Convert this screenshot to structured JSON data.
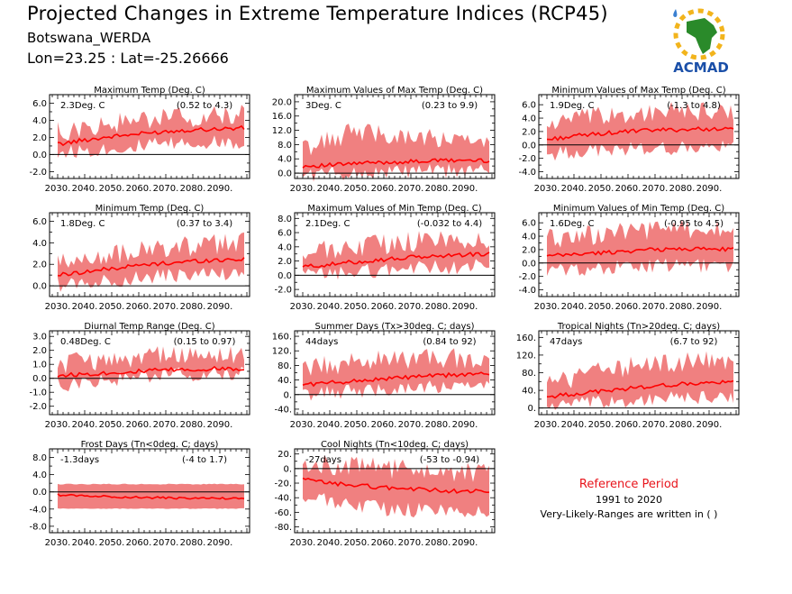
{
  "header": {
    "title": "Projected Changes in Extreme Temperature Indices (RCP45)",
    "station": "Botswana_WERDA",
    "coords": "Lon=23.25 : Lat=-25.26666"
  },
  "logo": {
    "text": "ACMAD",
    "colors": {
      "africa": "#2a8a2a",
      "sun": "#f2b41c",
      "text": "#1a4fa8",
      "drop": "#3a7fd0"
    }
  },
  "reference": {
    "title": "Reference Period",
    "years": "1991 to 2020",
    "note": "Very-Likely-Ranges are written in ( )"
  },
  "colors": {
    "band": "#f08080",
    "line": "#ff0000",
    "zero": "#000000"
  },
  "chart_data": [
    {
      "type": "area",
      "title": "Maximum Temp (Deg. C)",
      "value": "2.3Deg. C",
      "range": "(0.52 to 4.3)",
      "xticks": [
        "2030.",
        "2040.",
        "2050.",
        "2060.",
        "2070.",
        "2080.",
        "2090."
      ],
      "yticks": [
        "-2.0",
        "0.0",
        "2.0",
        "4.0",
        "6.0"
      ],
      "ylim": [
        -2.8,
        7.0
      ],
      "x": [
        2030,
        2040,
        2050,
        2060,
        2070,
        2080,
        2090,
        2099
      ],
      "median": [
        1.2,
        1.7,
        2.1,
        2.4,
        2.7,
        2.9,
        3.0,
        3.1
      ],
      "lower": [
        0.2,
        0.5,
        0.7,
        1.0,
        1.2,
        1.3,
        1.4,
        1.5
      ],
      "upper": [
        2.6,
        3.0,
        3.6,
        4.0,
        4.2,
        4.4,
        4.5,
        4.6
      ]
    },
    {
      "type": "area",
      "title": "Maximum Values of Max Temp (Deg. C)",
      "value": "3Deg. C",
      "range": "(0.23 to 9.9)",
      "xticks": [
        "2030.",
        "2040.",
        "2050.",
        "2060.",
        "2070.",
        "2080.",
        "2090."
      ],
      "yticks": [
        "0.0",
        "4.0",
        "8.0",
        "12.0",
        "16.0",
        "20.0"
      ],
      "ylim": [
        -1.5,
        22.0
      ],
      "x": [
        2030,
        2040,
        2050,
        2060,
        2070,
        2080,
        2090,
        2099
      ],
      "median": [
        2.0,
        2.2,
        2.7,
        3.0,
        3.2,
        3.5,
        3.6,
        3.5
      ],
      "lower": [
        -0.5,
        0.0,
        0.0,
        0.3,
        0.5,
        0.5,
        0.7,
        0.8
      ],
      "upper": [
        7.0,
        9.0,
        12.0,
        11.0,
        10.0,
        9.5,
        9.0,
        8.0
      ]
    },
    {
      "type": "area",
      "title": "Minimum Values of Max Temp (Deg. C)",
      "value": "1.9Deg. C",
      "range": "(-1.3 to 4.8)",
      "xticks": [
        "2030.",
        "2040.",
        "2050.",
        "2060.",
        "2070.",
        "2080.",
        "2090."
      ],
      "yticks": [
        "-4.0",
        "-2.0",
        "0.0",
        "2.0",
        "4.0",
        "6.0"
      ],
      "ylim": [
        -5.0,
        7.5
      ],
      "x": [
        2030,
        2040,
        2050,
        2060,
        2070,
        2080,
        2090,
        2099
      ],
      "median": [
        0.8,
        1.3,
        1.7,
        2.0,
        2.2,
        2.3,
        2.4,
        2.3
      ],
      "lower": [
        -1.5,
        -1.0,
        -0.8,
        -0.6,
        -0.5,
        -0.5,
        -0.4,
        -0.4
      ],
      "upper": [
        3.0,
        3.8,
        4.2,
        4.6,
        4.8,
        4.9,
        5.0,
        5.0
      ]
    },
    {
      "type": "area",
      "title": "Minimum Temp (Deg. C)",
      "value": "1.8Deg. C",
      "range": "(0.37 to 3.4)",
      "xticks": [
        "2030.",
        "2040.",
        "2050.",
        "2060.",
        "2070.",
        "2080.",
        "2090."
      ],
      "yticks": [
        "0.0",
        "2.0",
        "4.0",
        "6.0"
      ],
      "ylim": [
        -1.0,
        6.8
      ],
      "x": [
        2030,
        2040,
        2050,
        2060,
        2070,
        2080,
        2090,
        2099
      ],
      "median": [
        1.0,
        1.3,
        1.6,
        1.9,
        2.1,
        2.3,
        2.4,
        2.5
      ],
      "lower": [
        0.1,
        0.3,
        0.5,
        0.7,
        0.9,
        1.0,
        1.1,
        1.2
      ],
      "upper": [
        2.0,
        2.5,
        2.9,
        3.2,
        3.5,
        3.7,
        3.9,
        4.0
      ]
    },
    {
      "type": "area",
      "title": "Maximum Values of Min Temp (Deg. C)",
      "value": "2.1Deg. C",
      "range": "(-0.032 to 4.4)",
      "xticks": [
        "2030.",
        "2040.",
        "2050.",
        "2060.",
        "2070.",
        "2080.",
        "2090."
      ],
      "yticks": [
        "-2.0",
        "0.0",
        "2.0",
        "4.0",
        "6.0",
        "8.0"
      ],
      "ylim": [
        -3.0,
        8.8
      ],
      "x": [
        2030,
        2040,
        2050,
        2060,
        2070,
        2080,
        2090,
        2099
      ],
      "median": [
        1.2,
        1.5,
        1.9,
        2.2,
        2.5,
        2.7,
        2.9,
        3.0
      ],
      "lower": [
        0.0,
        0.2,
        0.5,
        0.7,
        1.0,
        1.1,
        1.2,
        1.3
      ],
      "upper": [
        3.0,
        3.5,
        4.0,
        4.4,
        4.7,
        4.9,
        5.0,
        5.0
      ]
    },
    {
      "type": "area",
      "title": "Minimum Values of Min Temp (Deg. C)",
      "value": "1.6Deg. C",
      "range": "(-0.95 to 4.5)",
      "xticks": [
        "2030.",
        "2040.",
        "2050.",
        "2060.",
        "2070.",
        "2080.",
        "2090."
      ],
      "yticks": [
        "-4.0",
        "-2.0",
        "0.0",
        "2.0",
        "4.0",
        "6.0"
      ],
      "ylim": [
        -5.0,
        7.5
      ],
      "x": [
        2030,
        2040,
        2050,
        2060,
        2070,
        2080,
        2090,
        2099
      ],
      "median": [
        1.0,
        1.3,
        1.5,
        1.8,
        2.0,
        2.1,
        2.1,
        2.0
      ],
      "lower": [
        -1.2,
        -0.9,
        -0.8,
        -0.6,
        -0.4,
        -0.4,
        -0.4,
        -0.5
      ],
      "upper": [
        3.5,
        4.0,
        4.3,
        4.6,
        4.8,
        4.9,
        5.0,
        5.0
      ]
    },
    {
      "type": "area",
      "title": "Diurnal Temp Range (Deg. C)",
      "value": "0.48Deg. C",
      "range": "(0.15 to 0.97)",
      "xticks": [
        "2030.",
        "2040.",
        "2050.",
        "2060.",
        "2070.",
        "2080.",
        "2090."
      ],
      "yticks": [
        "-2.0",
        "-1.0",
        "0.0",
        "1.0",
        "2.0",
        "3.0"
      ],
      "ylim": [
        -2.6,
        3.4
      ],
      "x": [
        2030,
        2040,
        2050,
        2060,
        2070,
        2080,
        2090,
        2099
      ],
      "median": [
        0.2,
        0.3,
        0.4,
        0.5,
        0.6,
        0.6,
        0.7,
        0.7
      ],
      "lower": [
        -0.5,
        -0.3,
        -0.1,
        0.1,
        0.2,
        0.3,
        0.3,
        0.3
      ],
      "upper": [
        1.0,
        1.2,
        1.4,
        1.5,
        1.6,
        1.6,
        1.6,
        1.5
      ]
    },
    {
      "type": "area",
      "title": "Summer Days (Tx>30deg. C; days)",
      "value": "44days",
      "range": "(0.84 to 92)",
      "xticks": [
        "2030.",
        "2040.",
        "2050.",
        "2060.",
        "2070.",
        "2080.",
        "2090."
      ],
      "yticks": [
        "-40.",
        "0.",
        "40.",
        "80.",
        "120.",
        "160."
      ],
      "ylim": [
        -55,
        175
      ],
      "x": [
        2030,
        2040,
        2050,
        2060,
        2070,
        2080,
        2090,
        2099
      ],
      "median": [
        28,
        32,
        38,
        43,
        48,
        52,
        55,
        57
      ],
      "lower": [
        0,
        5,
        10,
        15,
        18,
        20,
        22,
        24
      ],
      "upper": [
        70,
        80,
        90,
        95,
        100,
        100,
        100,
        100
      ]
    },
    {
      "type": "area",
      "title": "Tropical Nights (Tn>20deg. C; days)",
      "value": "47days",
      "range": "(6.7 to 92)",
      "xticks": [
        "2030.",
        "2040.",
        "2050.",
        "2060.",
        "2070.",
        "2080.",
        "2090."
      ],
      "yticks": [
        "0.",
        "40.",
        "80.",
        "120.",
        "160."
      ],
      "ylim": [
        -15,
        175
      ],
      "x": [
        2030,
        2040,
        2050,
        2060,
        2070,
        2080,
        2090,
        2099
      ],
      "median": [
        25,
        32,
        38,
        44,
        50,
        54,
        57,
        58
      ],
      "lower": [
        5,
        8,
        12,
        16,
        20,
        22,
        24,
        25
      ],
      "upper": [
        55,
        70,
        85,
        95,
        100,
        105,
        105,
        105
      ]
    },
    {
      "type": "area",
      "title": "Frost Days (Tn<0deg. C; days)",
      "value": "-1.3days",
      "range": "(-4 to 1.7)",
      "xticks": [
        "2030.",
        "2040.",
        "2050.",
        "2060.",
        "2070.",
        "2080.",
        "2090."
      ],
      "yticks": [
        "-8.0",
        "-4.0",
        "0.0",
        "4.0",
        "8.0"
      ],
      "ylim": [
        -9.5,
        10.0
      ],
      "x": [
        2030,
        2040,
        2050,
        2060,
        2070,
        2080,
        2090,
        2099
      ],
      "median": [
        -0.7,
        -0.9,
        -1.1,
        -1.3,
        -1.4,
        -1.5,
        -1.5,
        -1.5
      ],
      "lower": [
        -3.9,
        -3.9,
        -3.9,
        -3.9,
        -3.9,
        -3.9,
        -3.9,
        -3.9
      ],
      "upper": [
        1.8,
        1.8,
        1.8,
        1.8,
        1.8,
        1.8,
        1.8,
        1.8
      ]
    },
    {
      "type": "area",
      "title": "Cool Nights (Tn<10deg. C; days)",
      "value": "-27days",
      "range": "(-53 to -0.94)",
      "xticks": [
        "2030.",
        "2040.",
        "2050.",
        "2060.",
        "2070.",
        "2080.",
        "2090."
      ],
      "yticks": [
        "-80.",
        "-60.",
        "-40.",
        "-20.",
        "0.",
        "20."
      ],
      "ylim": [
        -88,
        27
      ],
      "x": [
        2030,
        2040,
        2050,
        2060,
        2070,
        2080,
        2090,
        2099
      ],
      "median": [
        -15,
        -20,
        -23,
        -26,
        -28,
        -30,
        -31,
        -32
      ],
      "lower": [
        -40,
        -45,
        -50,
        -55,
        -57,
        -58,
        -58,
        -58
      ],
      "upper": [
        8,
        5,
        2,
        0,
        -2,
        -5,
        -6,
        -7
      ]
    }
  ]
}
